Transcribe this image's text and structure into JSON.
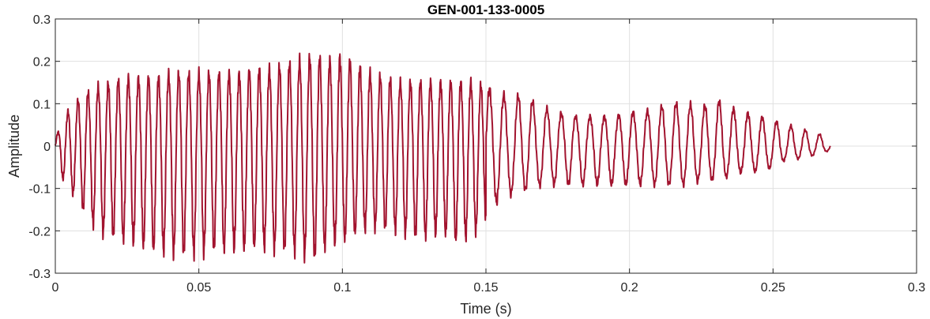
{
  "chart_data": {
    "type": "line",
    "title": "GEN-001-133-0005",
    "xlabel": "Time (s)",
    "ylabel": "Amplitude",
    "xlim": [
      0,
      0.3
    ],
    "ylim": [
      -0.3,
      0.3
    ],
    "grid": true,
    "x_ticks": [
      0,
      0.05,
      0.1,
      0.15,
      0.2,
      0.25,
      0.3
    ],
    "x_tick_labels": [
      "0",
      "0.05",
      "0.1",
      "0.15",
      "0.2",
      "0.25",
      "0.3"
    ],
    "y_ticks": [
      -0.3,
      -0.2,
      -0.1,
      0,
      0.1,
      0.2,
      0.3
    ],
    "y_tick_labels": [
      "-0.3",
      "-0.2",
      "-0.1",
      "0",
      "0.1",
      "0.2",
      "0.3"
    ],
    "line_color": "#A2142F",
    "series": [
      {
        "x": [
          0,
          0.005,
          0.01,
          0.015,
          0.02,
          0.025,
          0.03,
          0.035,
          0.04,
          0.045,
          0.05,
          0.055,
          0.06,
          0.065,
          0.07,
          0.075,
          0.08,
          0.085,
          0.09,
          0.095,
          0.1,
          0.105,
          0.11,
          0.115,
          0.12,
          0.125,
          0.13,
          0.135,
          0.14,
          0.145,
          0.15,
          0.155,
          0.16,
          0.165,
          0.17,
          0.175,
          0.18,
          0.185,
          0.19,
          0.195,
          0.2,
          0.205,
          0.21,
          0.215,
          0.22,
          0.225,
          0.23,
          0.235,
          0.24,
          0.245,
          0.25,
          0.255,
          0.26,
          0.265,
          0.27
        ],
        "upper": [
          0.02,
          0.09,
          0.12,
          0.14,
          0.15,
          0.16,
          0.16,
          0.16,
          0.17,
          0.17,
          0.17,
          0.17,
          0.17,
          0.17,
          0.18,
          0.18,
          0.19,
          0.2,
          0.21,
          0.2,
          0.21,
          0.19,
          0.17,
          0.16,
          0.15,
          0.15,
          0.15,
          0.15,
          0.15,
          0.15,
          0.14,
          0.12,
          0.12,
          0.11,
          0.09,
          0.08,
          0.07,
          0.07,
          0.07,
          0.07,
          0.08,
          0.08,
          0.09,
          0.1,
          0.1,
          0.09,
          0.11,
          0.09,
          0.08,
          0.07,
          0.06,
          0.05,
          0.04,
          0.03,
          0.02
        ],
        "lower": [
          -0.05,
          -0.1,
          -0.15,
          -0.2,
          -0.21,
          -0.22,
          -0.23,
          -0.24,
          -0.25,
          -0.25,
          -0.25,
          -0.24,
          -0.24,
          -0.24,
          -0.23,
          -0.24,
          -0.24,
          -0.25,
          -0.26,
          -0.23,
          -0.22,
          -0.2,
          -0.19,
          -0.19,
          -0.2,
          -0.21,
          -0.21,
          -0.2,
          -0.22,
          -0.21,
          -0.17,
          -0.12,
          -0.11,
          -0.1,
          -0.09,
          -0.09,
          -0.09,
          -0.09,
          -0.09,
          -0.09,
          -0.09,
          -0.09,
          -0.09,
          -0.09,
          -0.09,
          -0.08,
          -0.08,
          -0.07,
          -0.06,
          -0.06,
          -0.05,
          -0.03,
          -0.03,
          -0.02,
          -0.01
        ]
      }
    ]
  }
}
